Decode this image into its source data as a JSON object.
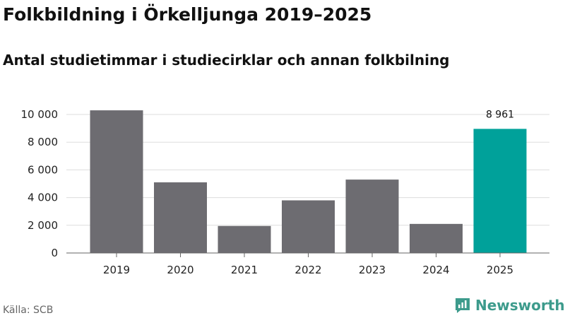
{
  "header": {
    "title": "Folkbildning i Örkelljunga 2019–2025",
    "subtitle": "Antal studietimmar i studiecirklar och annan folkbilning"
  },
  "footer": {
    "source": "Källa: SCB",
    "brand": "Newsworthy",
    "brand_icon": "newsworthy-logo-icon"
  },
  "colors": {
    "bar": "#6d6c71",
    "highlight": "#00a19a",
    "grid": "#dddddd",
    "axis": "#666666",
    "brand": "#3d9b8c"
  },
  "chart_data": {
    "type": "bar",
    "title": "Folkbildning i Örkelljunga 2019–2025",
    "subtitle": "Antal studietimmar i studiecirklar och annan folkbilning",
    "xlabel": "",
    "ylabel": "",
    "categories": [
      "2019",
      "2020",
      "2021",
      "2022",
      "2023",
      "2024",
      "2025"
    ],
    "values": [
      10300,
      5100,
      1950,
      3800,
      5300,
      2100,
      8961
    ],
    "highlight_index": 6,
    "data_labels": [
      {
        "index": 6,
        "text": "8 961"
      }
    ],
    "ylim": [
      0,
      10000
    ],
    "yticks": [
      {
        "value": 0,
        "label": "0"
      },
      {
        "value": 2000,
        "label": "2 000"
      },
      {
        "value": 4000,
        "label": "4 000"
      },
      {
        "value": 6000,
        "label": "6 000"
      },
      {
        "value": 8000,
        "label": "8 000"
      },
      {
        "value": 10000,
        "label": "10 000"
      }
    ],
    "grid": true,
    "legend": "none"
  }
}
